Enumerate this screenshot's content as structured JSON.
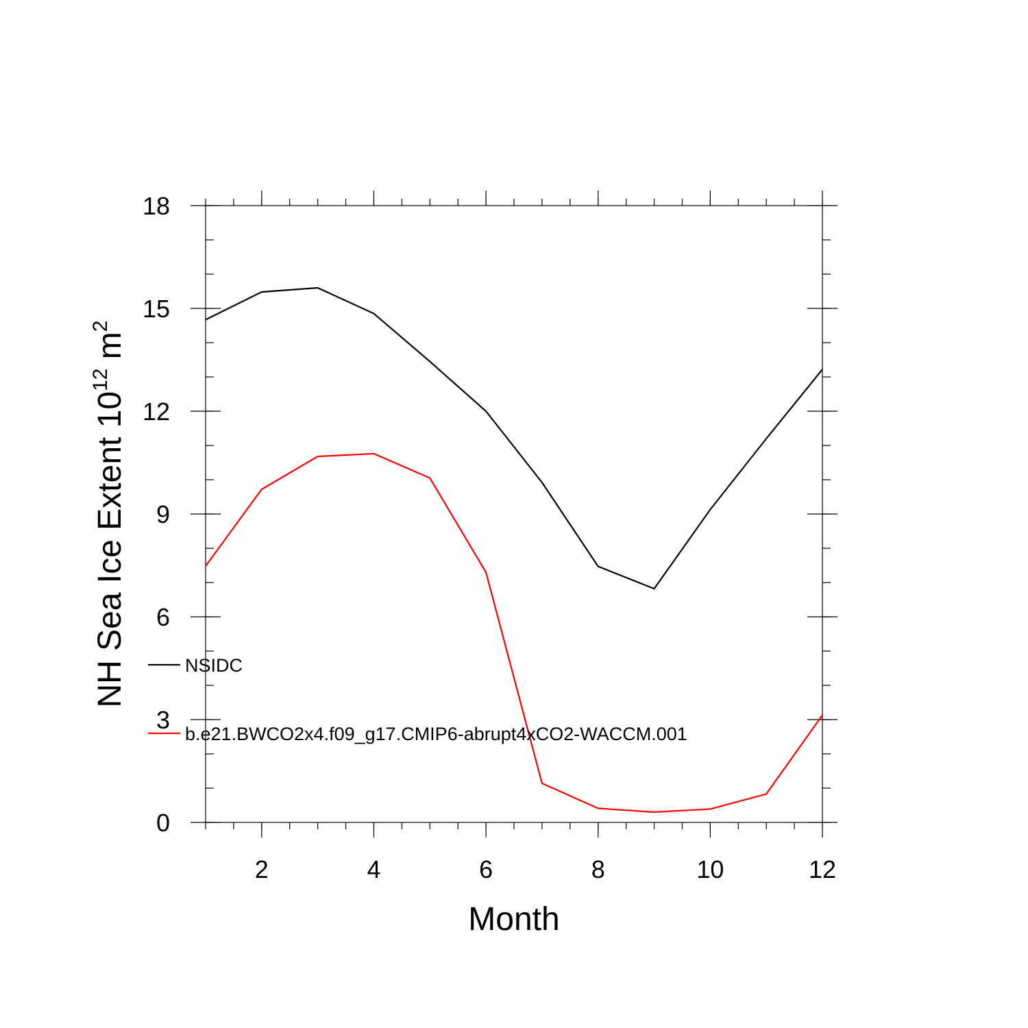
{
  "chart_data": {
    "type": "line",
    "xlabel": "Month",
    "ylabel": {
      "main": "NH Sea Ice Extent 10",
      "exponent1": "12",
      "unit": " m",
      "exponent2": "2"
    },
    "xlim": [
      1,
      12
    ],
    "ylim": [
      0,
      18
    ],
    "x_ticks": [
      2,
      4,
      6,
      8,
      10,
      12
    ],
    "y_ticks": [
      0,
      3,
      6,
      9,
      12,
      15,
      18
    ],
    "grid": false,
    "legend_position": "left-inside",
    "x": [
      1,
      2,
      3,
      4,
      5,
      6,
      7,
      8,
      9,
      10,
      11,
      12
    ],
    "series": [
      {
        "name": "NSIDC",
        "color": "#000000",
        "values": [
          14.67,
          15.48,
          15.6,
          14.85,
          13.45,
          12.0,
          9.92,
          7.47,
          6.82,
          9.13,
          11.2,
          13.22
        ]
      },
      {
        "name": "b.e21.BWCO2x4.f09_g17.CMIP6-abrupt4xCO2-WACCM.001",
        "color": "#ff0000",
        "values": [
          7.48,
          9.72,
          10.68,
          10.76,
          10.05,
          7.3,
          1.14,
          0.41,
          0.3,
          0.39,
          0.83,
          3.13
        ]
      }
    ]
  }
}
